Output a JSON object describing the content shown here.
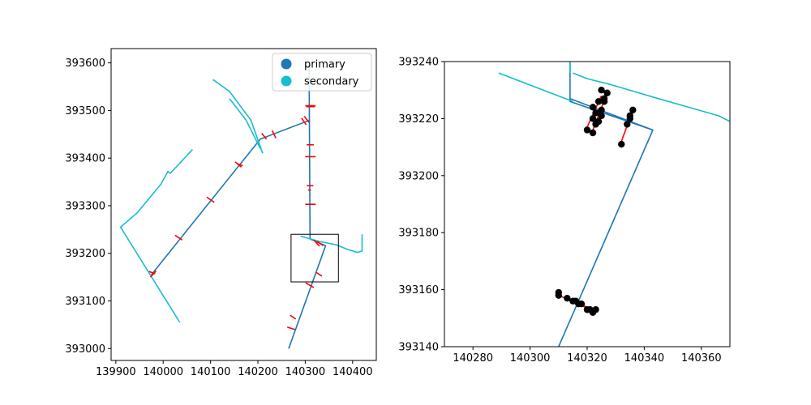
{
  "chart_data": [
    {
      "type": "line",
      "title": "",
      "xlabel": "",
      "ylabel": "",
      "xlim": [
        139890,
        140450
      ],
      "ylim": [
        392975,
        393630
      ],
      "xticks": [
        139900,
        140000,
        140100,
        140200,
        140300,
        140400
      ],
      "yticks": [
        393000,
        393100,
        393200,
        393300,
        393400,
        393500,
        393600
      ],
      "legend": {
        "placement": "top-right",
        "entries": [
          {
            "label": "primary",
            "color": "#1f77b4"
          },
          {
            "label": "secondary",
            "color": "#17becf"
          }
        ]
      },
      "series": [
        {
          "name": "primary",
          "color": "#1f77b4",
          "lines": [
            [
              [
                139975,
                393155
              ],
              [
                140205,
                393440
              ],
              [
                140310,
                393480
              ]
            ],
            [
              [
                140308,
                393600
              ],
              [
                140310,
                393230
              ]
            ],
            [
              [
                140310,
                393230
              ],
              [
                140343,
                393216
              ],
              [
                140265,
                393000
              ]
            ]
          ]
        },
        {
          "name": "secondary",
          "color": "#17becf",
          "lines": [
            [
              [
                140035,
                393055
              ],
              [
                139910,
                393255
              ],
              [
                139945,
                393285
              ],
              [
                139995,
                393345
              ],
              [
                140010,
                393372
              ],
              [
                140015,
                393368
              ],
              [
                140062,
                393418
              ]
            ],
            [
              [
                140105,
                393565
              ],
              [
                140140,
                393540
              ],
              [
                140185,
                393480
              ],
              [
                140210,
                393410
              ]
            ],
            [
              [
                140140,
                393525
              ],
              [
                140175,
                393480
              ],
              [
                140205,
                393420
              ]
            ],
            [
              [
                140290,
                393236
              ],
              [
                140330,
                393225
              ],
              [
                140365,
                393218
              ],
              [
                140390,
                393208
              ],
              [
                140410,
                393202
              ],
              [
                140420,
                393205
              ],
              [
                140420,
                393240
              ]
            ]
          ]
        }
      ],
      "cut_markers": {
        "color": "#ff0000",
        "segments": [
          [
            [
              139970,
              393162
            ],
            [
              139983,
              393157
            ]
          ],
          [
            [
              139973,
              393150
            ],
            [
              139985,
              393163
            ]
          ],
          [
            [
              140025,
              393238
            ],
            [
              140040,
              393228
            ]
          ],
          [
            [
              140092,
              393318
            ],
            [
              140108,
              393307
            ]
          ],
          [
            [
              140152,
              393392
            ],
            [
              140165,
              393381
            ]
          ],
          [
            [
              140157,
              393388
            ],
            [
              140168,
              393384
            ]
          ],
          [
            [
              140208,
              393452
            ],
            [
              140218,
              393440
            ]
          ],
          [
            [
              140230,
              393458
            ],
            [
              140238,
              393442
            ]
          ],
          [
            [
              140292,
              393484
            ],
            [
              140302,
              393470
            ]
          ],
          [
            [
              140298,
              393488
            ],
            [
              140308,
              393475
            ]
          ],
          [
            [
              140300,
              393510
            ],
            [
              140322,
              393510
            ]
          ],
          [
            [
              140302,
              393508
            ],
            [
              140320,
              393508
            ]
          ],
          [
            [
              140303,
              393428
            ],
            [
              140318,
              393428
            ]
          ],
          [
            [
              140300,
              393403
            ],
            [
              140322,
              393403
            ]
          ],
          [
            [
              140303,
              393342
            ],
            [
              140317,
              393342
            ]
          ],
          [
            [
              140306,
              393333
            ],
            [
              140312,
              393333
            ]
          ],
          [
            [
              140300,
              393303
            ],
            [
              140322,
              393303
            ]
          ],
          [
            [
              140318,
              393228
            ],
            [
              140330,
              393215
            ]
          ],
          [
            [
              140325,
              393225
            ],
            [
              140338,
              393216
            ]
          ],
          [
            [
              140323,
              393160
            ],
            [
              140335,
              393152
            ]
          ],
          [
            [
              140301,
              393138
            ],
            [
              140318,
              393128
            ]
          ],
          [
            [
              140268,
              393070
            ],
            [
              140280,
              393062
            ]
          ],
          [
            [
              140262,
              393045
            ],
            [
              140278,
              393040
            ]
          ]
        ]
      },
      "zoom_box": {
        "x": [
          140270,
          140370
        ],
        "y": [
          393140,
          393240
        ]
      }
    },
    {
      "type": "line",
      "title": "",
      "xlabel": "",
      "ylabel": "",
      "xlim": [
        140270,
        140370
      ],
      "ylim": [
        393140,
        393240
      ],
      "xticks": [
        140280,
        140300,
        140320,
        140340,
        140360
      ],
      "yticks": [
        393140,
        393160,
        393180,
        393200,
        393220,
        393240
      ],
      "series": [
        {
          "name": "primary",
          "color": "#1f77b4",
          "lines": [
            [
              [
                140314,
                393240
              ],
              [
                140314,
                393226
              ],
              [
                140343,
                393216
              ],
              [
                140310,
                393140
              ]
            ],
            [
              [
                140314,
                393227
              ],
              [
                140343,
                393216
              ]
            ]
          ]
        },
        {
          "name": "secondary",
          "color": "#17becf",
          "lines": [
            [
              [
                140289,
                393236
              ],
              [
                140315,
                393226
              ]
            ],
            [
              [
                140315,
                393236
              ],
              [
                140320,
                393234
              ],
              [
                140328,
                393232
              ],
              [
                140345,
                393227
              ],
              [
                140366,
                393221
              ],
              [
                140370,
                393219
              ]
            ],
            [
              [
                140314,
                393240
              ],
              [
                140314,
                393236
              ]
            ]
          ]
        }
      ],
      "cut_markers": {
        "color": "#ff0000",
        "segments": [
          [
            [
              140320,
              393217
            ],
            [
              140325,
              393228
            ]
          ],
          [
            [
              140322,
              393216
            ],
            [
              140327,
              393229
            ]
          ],
          [
            [
              140334,
              393218
            ],
            [
              140336,
              393222
            ]
          ],
          [
            [
              140332,
              393212
            ],
            [
              140336,
              393223
            ]
          ],
          [
            [
              140310,
              393158
            ],
            [
              140322,
              393153
            ]
          ],
          [
            [
              140313,
              393157
            ],
            [
              140323,
              393152
            ]
          ]
        ]
      },
      "points": {
        "color": "#000000",
        "xy": [
          [
            140320,
            393216
          ],
          [
            140322,
            393215
          ],
          [
            140322,
            393220
          ],
          [
            140322,
            393224
          ],
          [
            140323,
            393222
          ],
          [
            140323,
            393218
          ],
          [
            140324,
            393219
          ],
          [
            140325,
            393223
          ],
          [
            140326,
            393227
          ],
          [
            140327,
            393229
          ],
          [
            140325,
            393230
          ],
          [
            140326,
            393226
          ],
          [
            140324,
            393226
          ],
          [
            140325,
            393221
          ],
          [
            140334,
            393218
          ],
          [
            140335,
            393220
          ],
          [
            140336,
            393223
          ],
          [
            140332,
            393211
          ],
          [
            140335,
            393221
          ],
          [
            140310,
            393158
          ],
          [
            140310,
            393159
          ],
          [
            140313,
            393157
          ],
          [
            140315,
            393156
          ],
          [
            140316,
            393156
          ],
          [
            140318,
            393155
          ],
          [
            140317,
            393155
          ],
          [
            140320,
            393153
          ],
          [
            140322,
            393152
          ],
          [
            140323,
            393153
          ],
          [
            140321,
            393153
          ]
        ]
      }
    }
  ]
}
